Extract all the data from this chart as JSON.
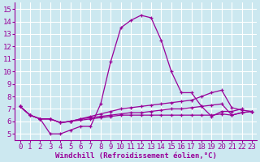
{
  "xlabel": "Windchill (Refroidissement éolien,°C)",
  "bg_color": "#cce8f0",
  "line_color": "#990099",
  "xlim": [
    -0.5,
    23.5
  ],
  "ylim": [
    4.5,
    15.5
  ],
  "xticks": [
    0,
    1,
    2,
    3,
    4,
    5,
    6,
    7,
    8,
    9,
    10,
    11,
    12,
    13,
    14,
    15,
    16,
    17,
    18,
    19,
    20,
    21,
    22,
    23
  ],
  "yticks": [
    5,
    6,
    7,
    8,
    9,
    10,
    11,
    12,
    13,
    14,
    15
  ],
  "line1_x": [
    0,
    1,
    2,
    3,
    4,
    5,
    6,
    7,
    8,
    9,
    10,
    11,
    12,
    13,
    14,
    15,
    16,
    17,
    18,
    19,
    20,
    21,
    22
  ],
  "line1_y": [
    7.2,
    6.5,
    6.2,
    5.0,
    5.0,
    5.3,
    5.6,
    5.6,
    7.4,
    10.8,
    13.5,
    14.1,
    14.5,
    14.3,
    12.5,
    10.0,
    8.3,
    8.3,
    7.2,
    6.4,
    6.8,
    6.8,
    7.0
  ],
  "line2_x": [
    0,
    1,
    2,
    3,
    4,
    5,
    6,
    7,
    8,
    9,
    10,
    11,
    12,
    13,
    14,
    15,
    16,
    17,
    18,
    19,
    20,
    21,
    22,
    23
  ],
  "line2_y": [
    7.2,
    6.5,
    6.2,
    6.2,
    5.9,
    6.0,
    6.2,
    6.4,
    6.6,
    6.8,
    7.0,
    7.1,
    7.2,
    7.3,
    7.4,
    7.5,
    7.6,
    7.7,
    8.0,
    8.3,
    8.5,
    7.1,
    6.9,
    6.8
  ],
  "line3_x": [
    0,
    1,
    2,
    3,
    4,
    5,
    6,
    7,
    8,
    9,
    10,
    11,
    12,
    13,
    14,
    15,
    16,
    17,
    18,
    19,
    20,
    21,
    22,
    23
  ],
  "line3_y": [
    7.2,
    6.5,
    6.2,
    6.2,
    5.9,
    6.0,
    6.2,
    6.3,
    6.4,
    6.5,
    6.6,
    6.7,
    6.7,
    6.8,
    6.9,
    7.0,
    7.0,
    7.1,
    7.2,
    7.3,
    7.4,
    6.5,
    6.7,
    6.8
  ],
  "line4_x": [
    0,
    1,
    2,
    3,
    4,
    5,
    6,
    7,
    8,
    9,
    10,
    11,
    12,
    13,
    14,
    15,
    16,
    17,
    18,
    19,
    20,
    21,
    22,
    23
  ],
  "line4_y": [
    7.2,
    6.5,
    6.2,
    6.2,
    5.9,
    6.0,
    6.1,
    6.2,
    6.3,
    6.4,
    6.5,
    6.5,
    6.5,
    6.5,
    6.5,
    6.5,
    6.5,
    6.5,
    6.5,
    6.5,
    6.6,
    6.5,
    6.7,
    6.8
  ],
  "tick_fontsize": 6.5,
  "xlabel_fontsize": 6.5
}
